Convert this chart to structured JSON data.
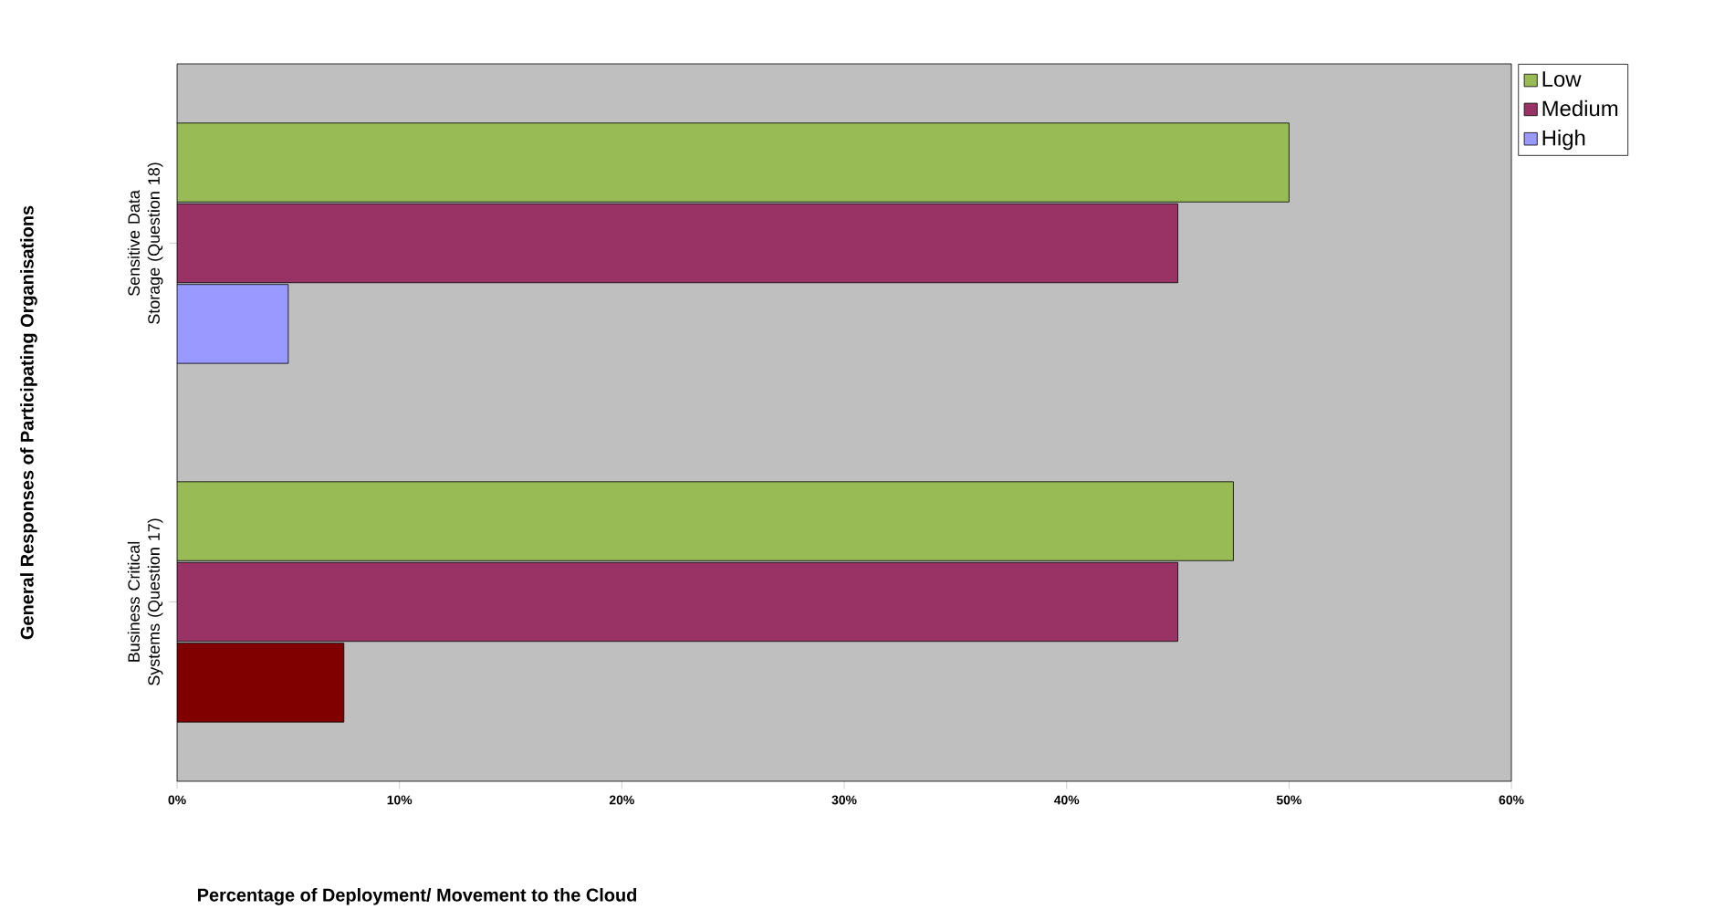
{
  "chart_data": {
    "type": "bar",
    "orientation": "horizontal",
    "xlabel": "Percentage of Deployment/ Movement to the Cloud",
    "ylabel": "General Responses of Participating Organisations",
    "categories": [
      "Sensitive Data Storage (Question 18)",
      "Business Critical Systems (Question 17)"
    ],
    "series": [
      {
        "name": "Low",
        "color": "#99bb55",
        "values": [
          50,
          47.5
        ]
      },
      {
        "name": "Medium",
        "color": "#993366",
        "values": [
          45,
          45
        ]
      },
      {
        "name": "High",
        "color": "#9999ff",
        "colors": [
          "#9999ff",
          "#800000"
        ],
        "values": [
          5,
          7.5
        ]
      }
    ],
    "xlim": [
      0,
      60
    ],
    "xticks": [
      {
        "value": 0,
        "label": "0%"
      },
      {
        "value": 10,
        "label": "10%"
      },
      {
        "value": 20,
        "label": "20%"
      },
      {
        "value": 30,
        "label": "30%"
      },
      {
        "value": 40,
        "label": "40%"
      },
      {
        "value": 50,
        "label": "50%"
      },
      {
        "value": 60,
        "label": "60%"
      }
    ],
    "grid": false,
    "legend": "top right"
  }
}
